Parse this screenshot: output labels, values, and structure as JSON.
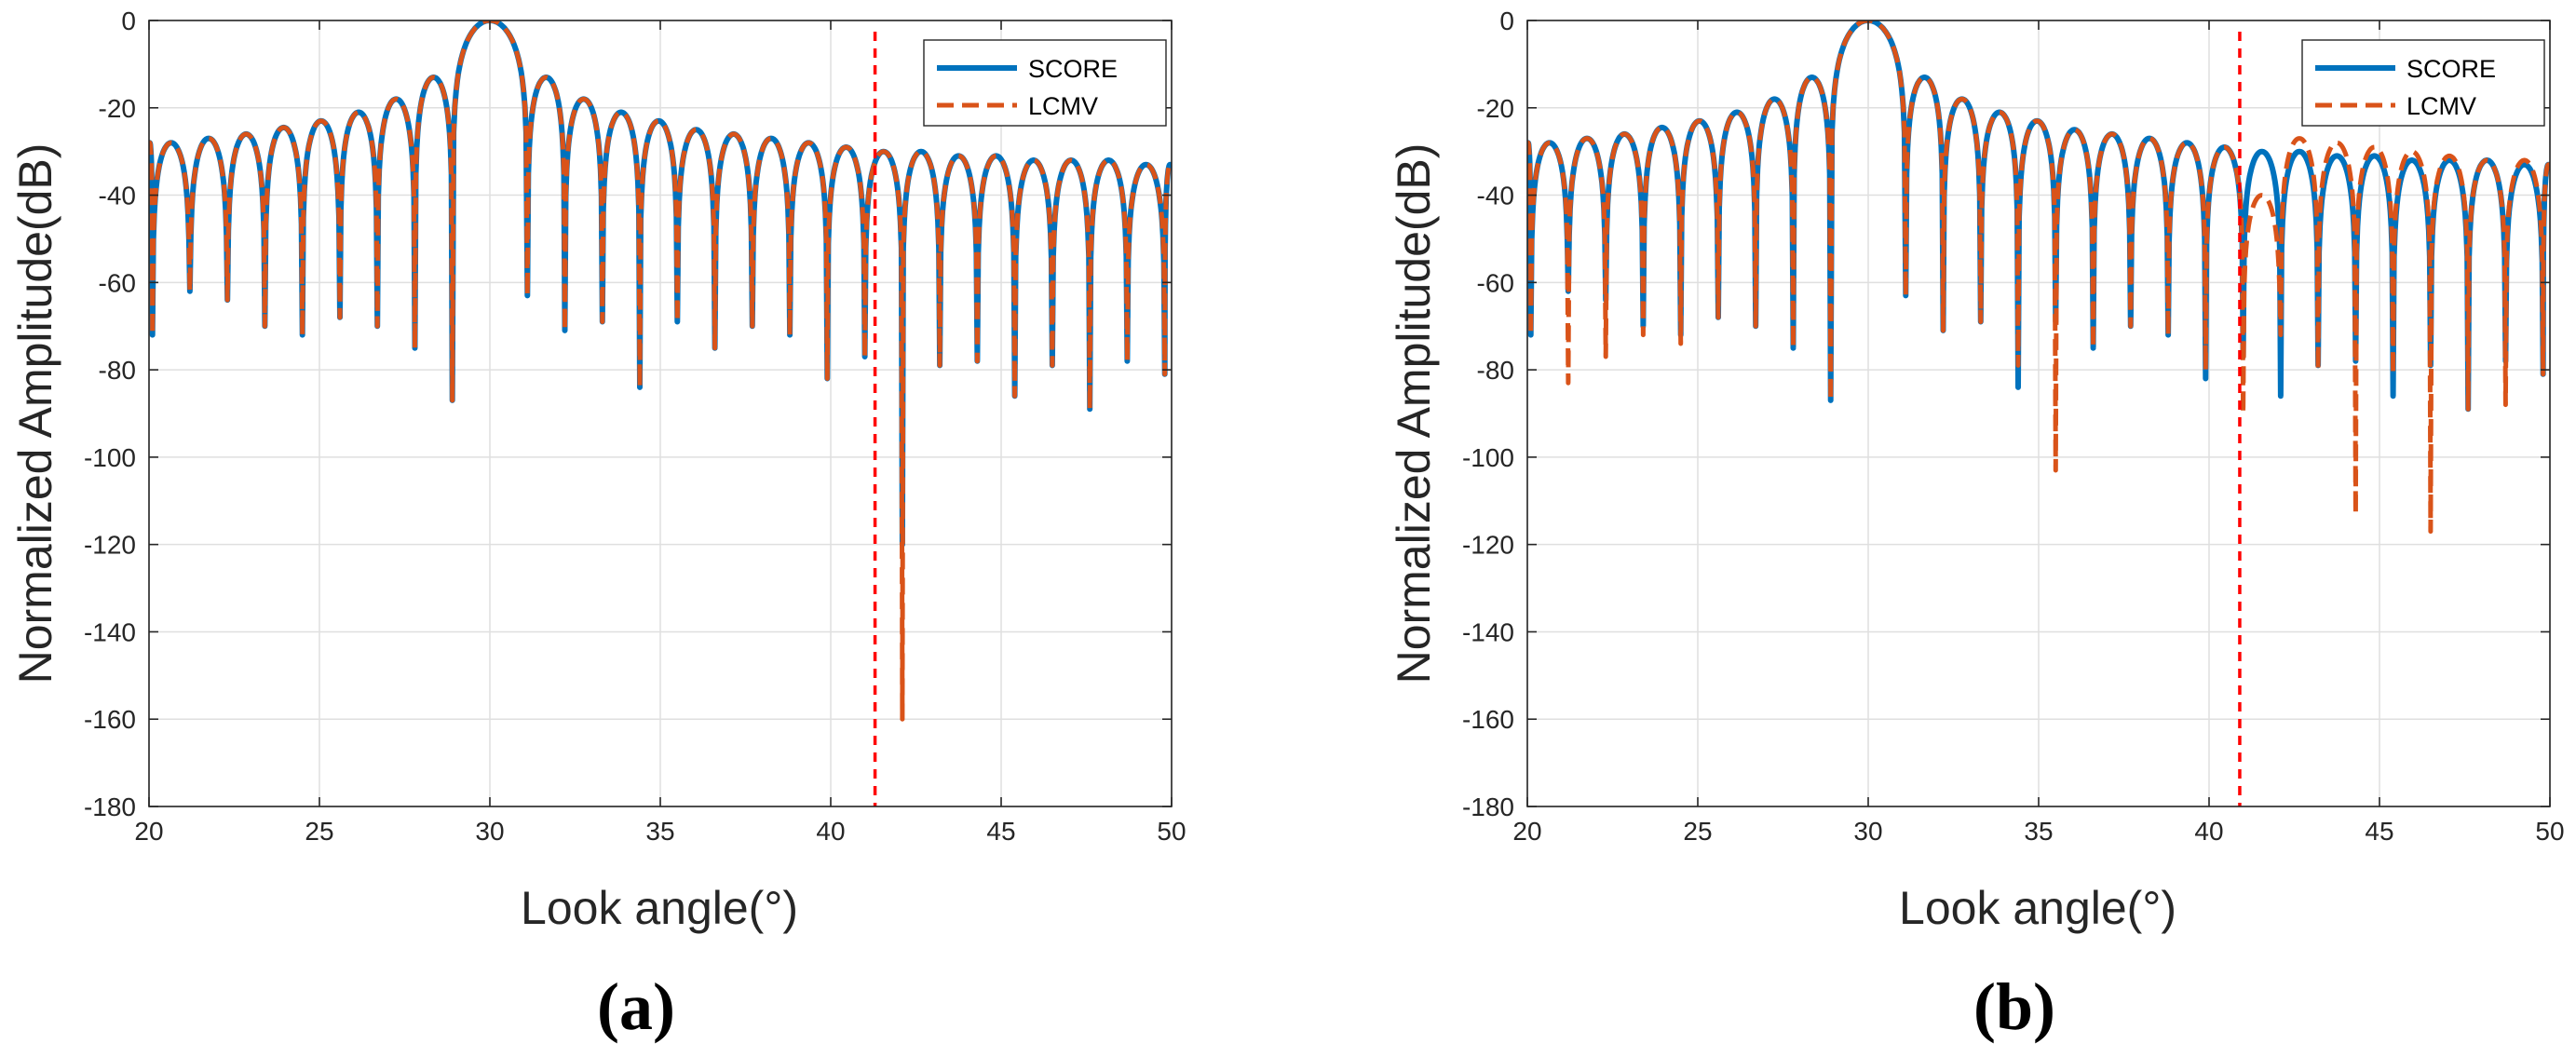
{
  "chart_data": [
    {
      "type": "line",
      "panel_label": "(a)",
      "xlabel": "Look angle(°)",
      "ylabel": "Normalized Amplitude(dB)",
      "xlim": [
        20,
        50
      ],
      "ylim": [
        -180,
        0
      ],
      "xticks": [
        "20",
        "25",
        "30",
        "35",
        "40",
        "45",
        "50"
      ],
      "yticks": [
        "0",
        "-20",
        "-40",
        "-60",
        "-80",
        "-100",
        "-120",
        "-140",
        "-160",
        "-180"
      ],
      "grid": true,
      "legend": {
        "placement": "top-right",
        "entries": [
          "SCORE",
          "LCMV"
        ]
      },
      "main_lobe_center": 30,
      "lobe_spacing": 1.1,
      "interference_angle": 41.3,
      "series": [
        {
          "name": "SCORE",
          "style": "solid",
          "color": "#0072BD",
          "sidelobe_peaks_left": [
            -28,
            -27,
            -26,
            -24.5,
            -23,
            -21,
            -18,
            -13
          ],
          "sidelobe_peaks_right": [
            -13,
            -18,
            -21,
            -23,
            -25,
            -26,
            -27,
            -28,
            -29,
            -30,
            -30,
            -31,
            -31,
            -32,
            -32,
            -32,
            -33,
            -33
          ],
          "null_depths_left": [
            -87,
            -75,
            -70,
            -68,
            -72,
            -70,
            -64,
            -62,
            -72
          ],
          "null_depths_right": [
            -63,
            -71,
            -69,
            -84,
            -69,
            -75,
            -70,
            -72,
            -82,
            -77,
            -120,
            -79,
            -78,
            -86,
            -79,
            -89,
            -78,
            -81
          ]
        },
        {
          "name": "LCMV",
          "style": "dashed",
          "color": "#D95319",
          "sidelobe_peaks_left": [
            -28,
            -27,
            -26,
            -24.5,
            -23,
            -21,
            -18,
            -13
          ],
          "sidelobe_peaks_right": [
            -13,
            -18,
            -21,
            -23,
            -25,
            -26,
            -27,
            -28,
            -29,
            -30,
            -30,
            -31,
            -31,
            -32,
            -32,
            -32,
            -33,
            -33
          ],
          "null_depths_left": [
            -87,
            -75,
            -70,
            -68,
            -72,
            -70,
            -64,
            -62,
            -72
          ],
          "null_depths_right": [
            -63,
            -71,
            -69,
            -84,
            -69,
            -75,
            -70,
            -72,
            -82,
            -77,
            -160,
            -79,
            -78,
            -86,
            -79,
            -89,
            -78,
            -81
          ]
        }
      ]
    },
    {
      "type": "line",
      "panel_label": "(b)",
      "xlabel": "Look angle(°)",
      "ylabel": "Normalized Amplitude(dB)",
      "xlim": [
        20,
        50
      ],
      "ylim": [
        -180,
        0
      ],
      "xticks": [
        "20",
        "25",
        "30",
        "35",
        "40",
        "45",
        "50"
      ],
      "yticks": [
        "0",
        "-20",
        "-40",
        "-60",
        "-80",
        "-100",
        "-120",
        "-140",
        "-160",
        "-180"
      ],
      "grid": true,
      "legend": {
        "placement": "top-right",
        "entries": [
          "SCORE",
          "LCMV"
        ]
      },
      "main_lobe_center": 30,
      "lobe_spacing": 1.1,
      "interference_angle": 40.9,
      "series": [
        {
          "name": "SCORE",
          "style": "solid",
          "color": "#0072BD",
          "sidelobe_peaks_left": [
            -28,
            -27,
            -26,
            -24.5,
            -23,
            -21,
            -18,
            -13
          ],
          "sidelobe_peaks_right": [
            -13,
            -18,
            -21,
            -23,
            -25,
            -26,
            -27,
            -28,
            -29,
            -30,
            -30,
            -31,
            -31,
            -32,
            -32,
            -32,
            -33,
            -33
          ],
          "null_depths_left": [
            -87,
            -75,
            -70,
            -68,
            -72,
            -70,
            -64,
            -62,
            -72
          ],
          "null_depths_right": [
            -63,
            -71,
            -69,
            -84,
            -69,
            -75,
            -70,
            -72,
            -82,
            -77,
            -86,
            -79,
            -78,
            -86,
            -79,
            -89,
            -78,
            -81
          ]
        },
        {
          "name": "LCMV",
          "style": "dashed",
          "color": "#D95319",
          "sidelobe_peaks_left": [
            -28,
            -27,
            -26,
            -24.5,
            -23,
            -21,
            -18,
            -13
          ],
          "sidelobe_peaks_right": [
            -13,
            -18,
            -21,
            -23,
            -25,
            -26,
            -27,
            -28,
            -29,
            -40,
            -27,
            -28,
            -29,
            -30,
            -31,
            -32,
            -32,
            -33
          ],
          "null_depths_left": [
            -87,
            -75,
            -70,
            -68,
            -74,
            -72,
            -77,
            -83,
            -72
          ],
          "null_depths_right": [
            -63,
            -71,
            -69,
            -79,
            -103,
            -75,
            -70,
            -72,
            -80,
            -90,
            -72,
            -80,
            -113,
            -81,
            -117,
            -89,
            -88,
            -81
          ]
        }
      ]
    }
  ]
}
